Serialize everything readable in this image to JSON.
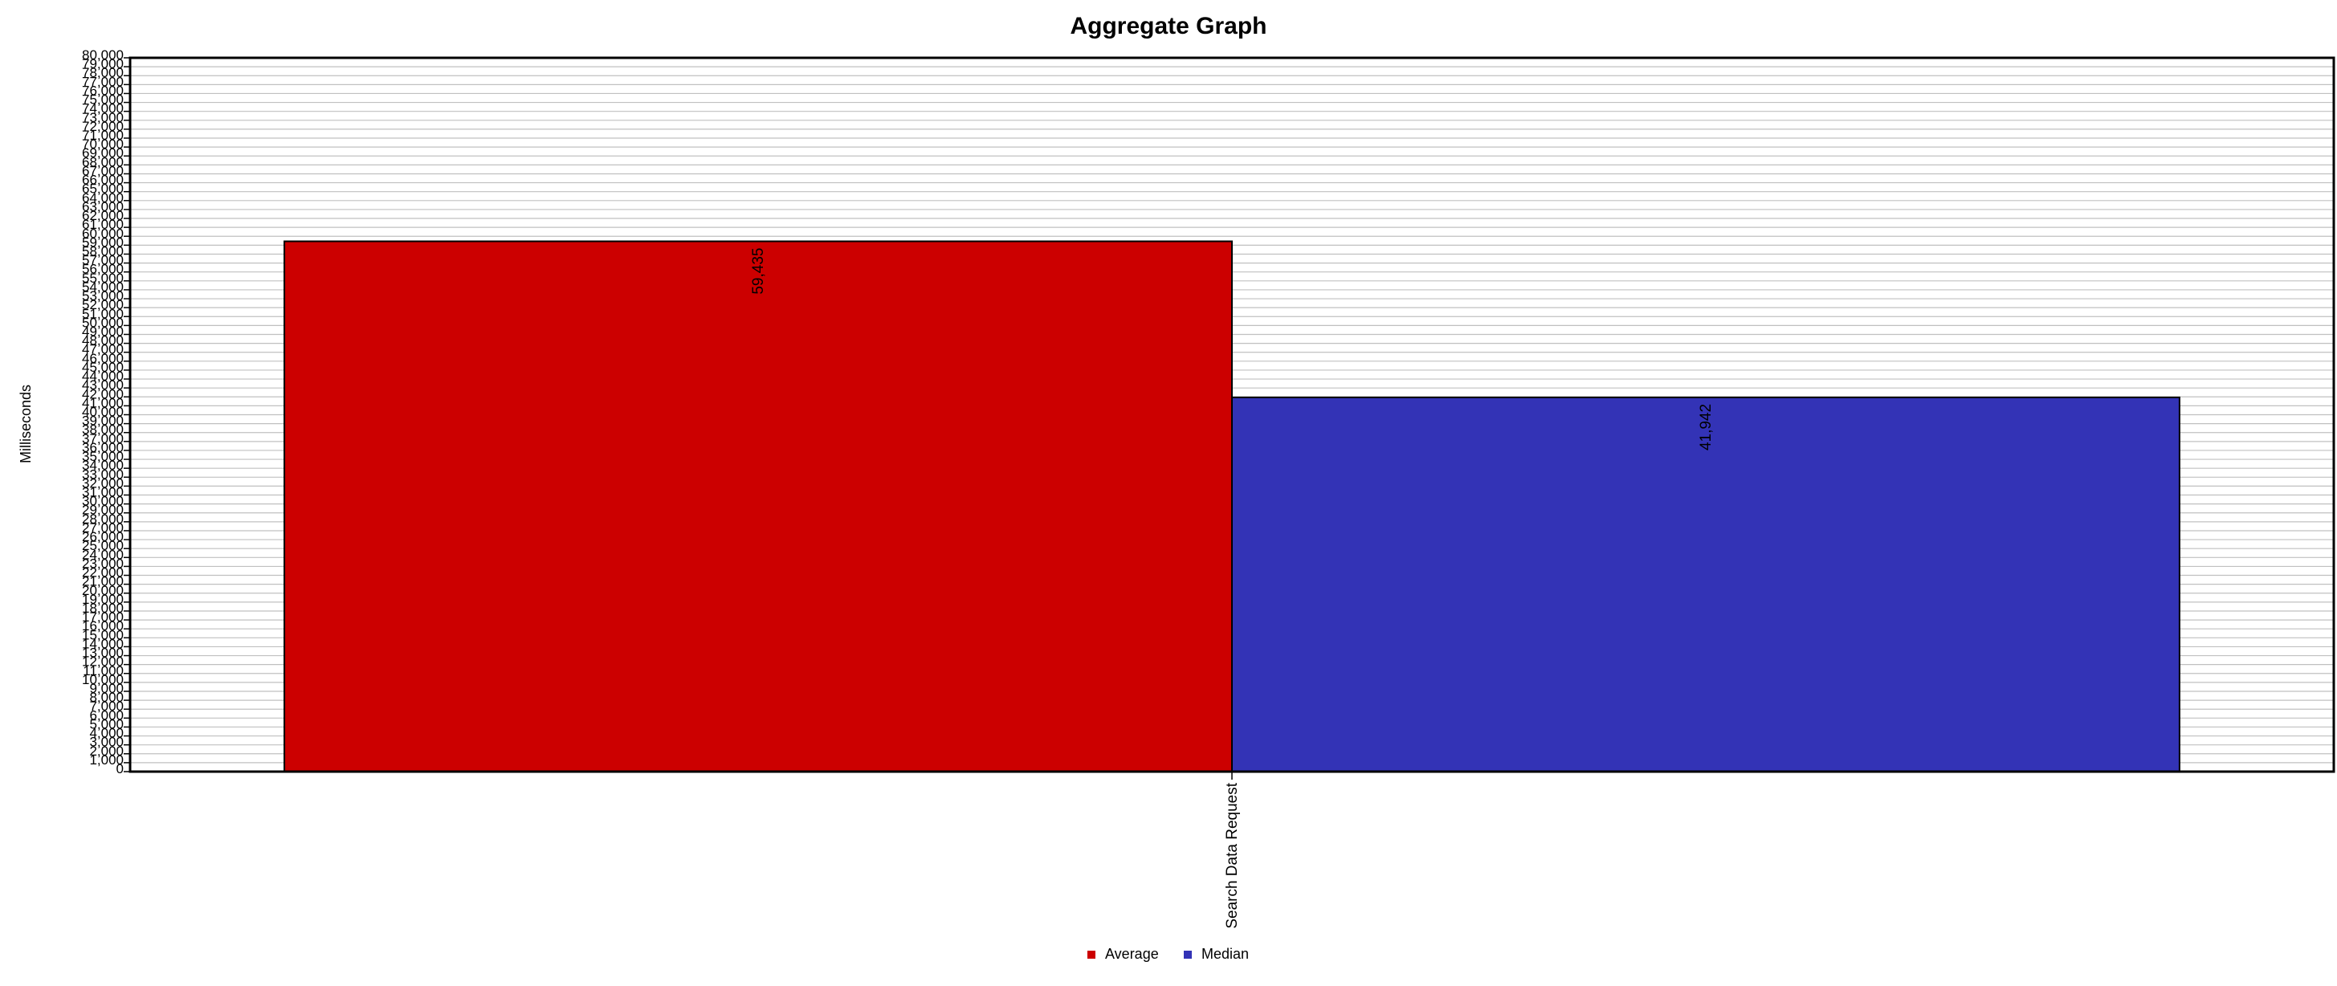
{
  "chart_data": {
    "type": "bar",
    "title": "Aggregate Graph",
    "xlabel": "",
    "ylabel": "Milliseconds",
    "categories": [
      "Search Data Request"
    ],
    "series": [
      {
        "name": "Average",
        "values": [
          59435
        ],
        "value_labels": [
          "59,435"
        ],
        "color": "#cc0000"
      },
      {
        "name": "Median",
        "values": [
          41942
        ],
        "value_labels": [
          "41,942"
        ],
        "color": "#3333b6"
      }
    ],
    "ylim": [
      0,
      80000
    ],
    "y_tick_step": 1000,
    "grid": true,
    "legend": "bottom"
  }
}
